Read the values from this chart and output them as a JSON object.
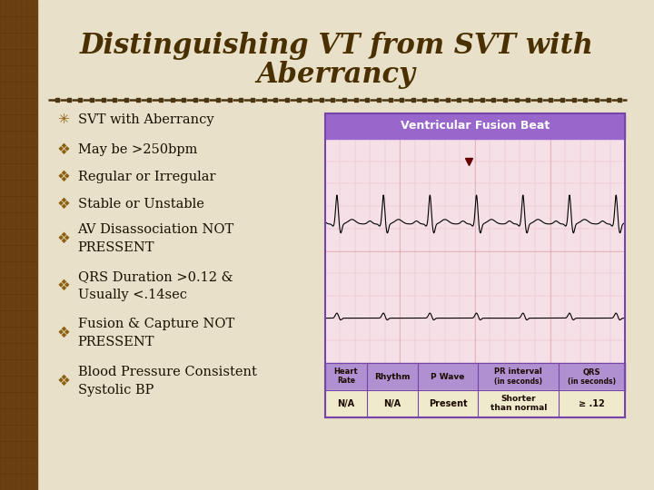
{
  "title_line1": "Distinguishing VT from SVT with",
  "title_line2": "Aberrancy",
  "title_color": "#4a3000",
  "title_fontsize": 22,
  "bg_color": "#e8e0c8",
  "left_bar_color": "#6b4010",
  "divider_color": "#4a3510",
  "bullet_color": "#8b6010",
  "text_color": "#1a1000",
  "bullet_items": [
    [
      "SVT with Aberrancy",
      false
    ],
    [
      "May be >250bpm",
      true
    ],
    [
      "Regular or Irregular",
      true
    ],
    [
      "Stable or Unstable",
      true
    ],
    [
      "AV Disassociation NOT\nPRESSENT",
      true
    ],
    [
      "QRS Duration >0.12 &\nUsually <.14sec",
      true
    ],
    [
      "Fusion & Capture NOT\nPRESSENT",
      true
    ],
    [
      "Blood Pressure Consistent\nSystolic BP",
      true
    ]
  ],
  "table_header": "Ventricular Fusion Beat",
  "table_header_bg": "#9966cc",
  "table_header_color": "#ffffff",
  "table_cols": [
    "Heart\nRate",
    "Rhythm",
    "P Wave",
    "PR interval\n(in seconds)",
    "QRS\n(in seconds)"
  ],
  "table_row": [
    "N/A",
    "N/A",
    "Present",
    "Shorter\nthan normal",
    "≥ .12"
  ],
  "table_bg": "#f0eacc",
  "table_col_bg": "#b090d0",
  "table_border": "#7744aa",
  "ecg_bg": "#f5e8f0"
}
